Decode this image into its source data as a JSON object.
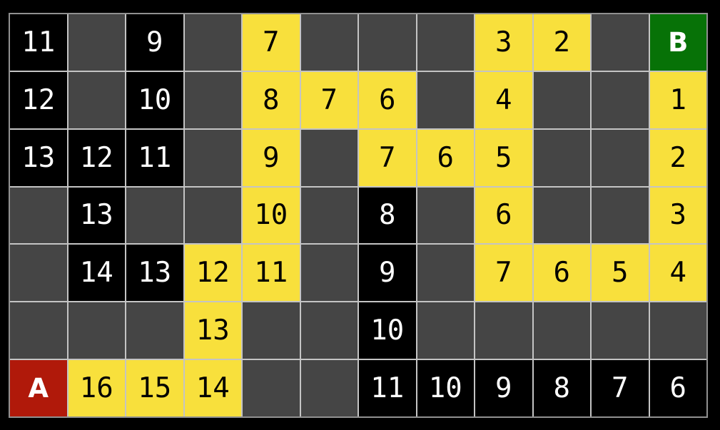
{
  "colors": {
    "background": "#000000",
    "grid_line": "#c4c4c4",
    "grid_border": "#909090",
    "empty": "#454545",
    "visited": "#000000",
    "visited_text": "#ffffff",
    "path": "#f8e03c",
    "path_text": "#000000",
    "start": "#b0190a",
    "start_text": "#ffffff",
    "goal": "#077207",
    "goal_text": "#ffffff"
  },
  "grid": {
    "columns": 12,
    "row_count": 7,
    "start_label": "A",
    "goal_label": "B",
    "rows": [
      {
        "cells": [
          {
            "type": "visited",
            "label": "11"
          },
          {
            "type": "empty",
            "label": ""
          },
          {
            "type": "visited",
            "label": "9"
          },
          {
            "type": "empty",
            "label": ""
          },
          {
            "type": "path",
            "label": "7"
          },
          {
            "type": "empty",
            "label": ""
          },
          {
            "type": "empty",
            "label": ""
          },
          {
            "type": "empty",
            "label": ""
          },
          {
            "type": "path",
            "label": "3"
          },
          {
            "type": "path",
            "label": "2"
          },
          {
            "type": "empty",
            "label": ""
          },
          {
            "type": "goal",
            "label": "B"
          }
        ]
      },
      {
        "cells": [
          {
            "type": "visited",
            "label": "12"
          },
          {
            "type": "empty",
            "label": ""
          },
          {
            "type": "visited",
            "label": "10"
          },
          {
            "type": "empty",
            "label": ""
          },
          {
            "type": "path",
            "label": "8"
          },
          {
            "type": "path",
            "label": "7"
          },
          {
            "type": "path",
            "label": "6"
          },
          {
            "type": "empty",
            "label": ""
          },
          {
            "type": "path",
            "label": "4"
          },
          {
            "type": "empty",
            "label": ""
          },
          {
            "type": "empty",
            "label": ""
          },
          {
            "type": "path",
            "label": "1"
          }
        ]
      },
      {
        "cells": [
          {
            "type": "visited",
            "label": "13"
          },
          {
            "type": "visited",
            "label": "12"
          },
          {
            "type": "visited",
            "label": "11"
          },
          {
            "type": "empty",
            "label": ""
          },
          {
            "type": "path",
            "label": "9"
          },
          {
            "type": "empty",
            "label": ""
          },
          {
            "type": "path",
            "label": "7"
          },
          {
            "type": "path",
            "label": "6"
          },
          {
            "type": "path",
            "label": "5"
          },
          {
            "type": "empty",
            "label": ""
          },
          {
            "type": "empty",
            "label": ""
          },
          {
            "type": "path",
            "label": "2"
          }
        ]
      },
      {
        "cells": [
          {
            "type": "empty",
            "label": ""
          },
          {
            "type": "visited",
            "label": "13"
          },
          {
            "type": "empty",
            "label": ""
          },
          {
            "type": "empty",
            "label": ""
          },
          {
            "type": "path",
            "label": "10"
          },
          {
            "type": "empty",
            "label": ""
          },
          {
            "type": "visited",
            "label": "8"
          },
          {
            "type": "empty",
            "label": ""
          },
          {
            "type": "path",
            "label": "6"
          },
          {
            "type": "empty",
            "label": ""
          },
          {
            "type": "empty",
            "label": ""
          },
          {
            "type": "path",
            "label": "3"
          }
        ]
      },
      {
        "cells": [
          {
            "type": "empty",
            "label": ""
          },
          {
            "type": "visited",
            "label": "14"
          },
          {
            "type": "visited",
            "label": "13"
          },
          {
            "type": "path",
            "label": "12"
          },
          {
            "type": "path",
            "label": "11"
          },
          {
            "type": "empty",
            "label": ""
          },
          {
            "type": "visited",
            "label": "9"
          },
          {
            "type": "empty",
            "label": ""
          },
          {
            "type": "path",
            "label": "7"
          },
          {
            "type": "path",
            "label": "6"
          },
          {
            "type": "path",
            "label": "5"
          },
          {
            "type": "path",
            "label": "4"
          }
        ]
      },
      {
        "cells": [
          {
            "type": "empty",
            "label": ""
          },
          {
            "type": "empty",
            "label": ""
          },
          {
            "type": "empty",
            "label": ""
          },
          {
            "type": "path",
            "label": "13"
          },
          {
            "type": "empty",
            "label": ""
          },
          {
            "type": "empty",
            "label": ""
          },
          {
            "type": "visited",
            "label": "10"
          },
          {
            "type": "empty",
            "label": ""
          },
          {
            "type": "empty",
            "label": ""
          },
          {
            "type": "empty",
            "label": ""
          },
          {
            "type": "empty",
            "label": ""
          },
          {
            "type": "empty",
            "label": ""
          }
        ]
      },
      {
        "cells": [
          {
            "type": "start",
            "label": "A"
          },
          {
            "type": "path",
            "label": "16"
          },
          {
            "type": "path",
            "label": "15"
          },
          {
            "type": "path",
            "label": "14"
          },
          {
            "type": "empty",
            "label": ""
          },
          {
            "type": "empty",
            "label": ""
          },
          {
            "type": "visited",
            "label": "11"
          },
          {
            "type": "visited",
            "label": "10"
          },
          {
            "type": "visited",
            "label": "9"
          },
          {
            "type": "visited",
            "label": "8"
          },
          {
            "type": "visited",
            "label": "7"
          },
          {
            "type": "visited",
            "label": "6"
          }
        ]
      }
    ]
  }
}
